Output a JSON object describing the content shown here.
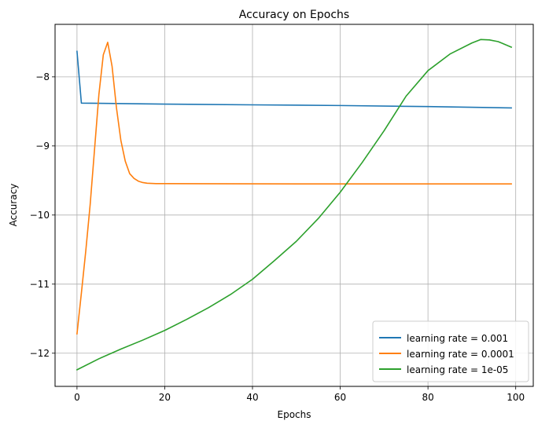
{
  "chart_data": {
    "type": "line",
    "title": "Accuracy on Epochs",
    "xlabel": "Epochs",
    "ylabel": "Accuracy",
    "xlim": [
      -5,
      104
    ],
    "ylim": [
      -12.48,
      -7.24
    ],
    "xticks": [
      0,
      20,
      40,
      60,
      80,
      100
    ],
    "yticks": [
      -12,
      -11,
      -10,
      -9,
      -8
    ],
    "grid": true,
    "legend_position": "lower-right",
    "series": [
      {
        "name": "learning rate = 0.001",
        "color": "#1f77b4",
        "points": [
          [
            0,
            -7.63
          ],
          [
            1,
            -8.38
          ],
          [
            20,
            -8.395
          ],
          [
            40,
            -8.405
          ],
          [
            60,
            -8.415
          ],
          [
            80,
            -8.43
          ],
          [
            99,
            -8.45
          ]
        ]
      },
      {
        "name": "learning rate = 0.0001",
        "color": "#ff7f0e",
        "points": [
          [
            0,
            -11.72
          ],
          [
            1,
            -11.13
          ],
          [
            2,
            -10.52
          ],
          [
            3,
            -9.85
          ],
          [
            4,
            -9.05
          ],
          [
            5,
            -8.25
          ],
          [
            6,
            -7.68
          ],
          [
            7,
            -7.5
          ],
          [
            8,
            -7.85
          ],
          [
            9,
            -8.45
          ],
          [
            10,
            -8.92
          ],
          [
            11,
            -9.22
          ],
          [
            12,
            -9.4
          ],
          [
            13,
            -9.47
          ],
          [
            14,
            -9.51
          ],
          [
            15,
            -9.53
          ],
          [
            16,
            -9.54
          ],
          [
            18,
            -9.545
          ],
          [
            20,
            -9.545
          ],
          [
            40,
            -9.548
          ],
          [
            60,
            -9.55
          ],
          [
            80,
            -9.55
          ],
          [
            99,
            -9.55
          ]
        ]
      },
      {
        "name": "learning rate = 1e-05",
        "color": "#2ca02c",
        "points": [
          [
            0,
            -12.24
          ],
          [
            5,
            -12.08
          ],
          [
            10,
            -11.94
          ],
          [
            15,
            -11.81
          ],
          [
            20,
            -11.67
          ],
          [
            25,
            -11.51
          ],
          [
            30,
            -11.34
          ],
          [
            35,
            -11.15
          ],
          [
            40,
            -10.93
          ],
          [
            45,
            -10.66
          ],
          [
            50,
            -10.38
          ],
          [
            55,
            -10.05
          ],
          [
            60,
            -9.67
          ],
          [
            65,
            -9.24
          ],
          [
            70,
            -8.78
          ],
          [
            75,
            -8.28
          ],
          [
            80,
            -7.91
          ],
          [
            85,
            -7.67
          ],
          [
            90,
            -7.51
          ],
          [
            92,
            -7.46
          ],
          [
            94,
            -7.465
          ],
          [
            96,
            -7.49
          ],
          [
            99,
            -7.57
          ]
        ]
      }
    ]
  }
}
